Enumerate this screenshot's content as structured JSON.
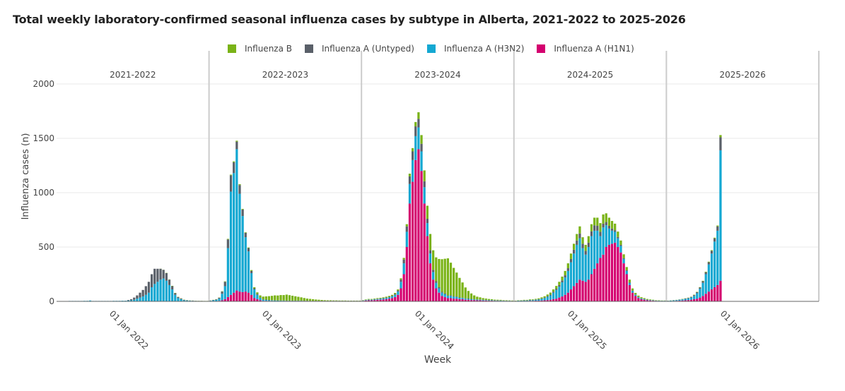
{
  "chart_data": {
    "type": "bar",
    "title": "Total weekly laboratory-confirmed seasonal influenza cases by subtype in Alberta, 2021-2022 to 2025-2026",
    "xlabel": "Week",
    "ylabel": "Influenza cases (n)",
    "ylim": [
      0,
      2100
    ],
    "yticks": [
      0,
      500,
      1000,
      1500,
      2000
    ],
    "stacked": true,
    "legend_position": "top",
    "grid": true,
    "seasons": [
      "2021-2022",
      "2022-2023",
      "2023-2024",
      "2024-2025",
      "2025-2026"
    ],
    "xtick_labels": [
      "01 Jan 2022",
      "01 Jan 2023",
      "01 Jan 2024",
      "01 Jan 2025",
      "01 Jan 2026"
    ],
    "series": [
      {
        "name": "Influenza B",
        "color": "#7ab317"
      },
      {
        "name": "Influenza A (Untyped)",
        "color": "#5a6069"
      },
      {
        "name": "Influenza A (H3N2)",
        "color": "#14a8d2"
      },
      {
        "name": "Influenza A (H1N1)",
        "color": "#d4006f"
      }
    ],
    "weeks_by_season": [
      {
        "season": "2021-2022",
        "h1n1": [
          0,
          0,
          0,
          0,
          0,
          0,
          0,
          0,
          0,
          0,
          0,
          0,
          0,
          0,
          0,
          0,
          0,
          0,
          0,
          0,
          0,
          0,
          0,
          0,
          0,
          0,
          0,
          0,
          0,
          0,
          0,
          0,
          0,
          0,
          0,
          0,
          0,
          0,
          0,
          0,
          0,
          0,
          0,
          0,
          0,
          0,
          0,
          0,
          0,
          0,
          0,
          0
        ],
        "h3n2": [
          2,
          2,
          3,
          3,
          4,
          4,
          4,
          4,
          4,
          5,
          5,
          8,
          4,
          4,
          4,
          4,
          4,
          4,
          4,
          5,
          5,
          5,
          6,
          6,
          8,
          10,
          15,
          25,
          35,
          45,
          60,
          80,
          130,
          160,
          180,
          200,
          210,
          190,
          150,
          110,
          60,
          30,
          20,
          10,
          8,
          6,
          5,
          4,
          3,
          3,
          2,
          2
        ],
        "untyped": [
          0,
          0,
          0,
          0,
          0,
          0,
          0,
          0,
          0,
          0,
          0,
          0,
          0,
          0,
          0,
          0,
          0,
          0,
          0,
          0,
          0,
          0,
          0,
          0,
          5,
          10,
          20,
          30,
          45,
          60,
          80,
          100,
          120,
          140,
          120,
          100,
          80,
          70,
          50,
          30,
          15,
          10,
          6,
          4,
          3,
          2,
          2,
          1,
          1,
          1,
          1,
          1
        ],
        "b": [
          0,
          0,
          0,
          0,
          0,
          0,
          0,
          0,
          0,
          0,
          0,
          0,
          0,
          0,
          0,
          0,
          0,
          0,
          0,
          0,
          0,
          0,
          0,
          0,
          0,
          0,
          0,
          0,
          0,
          0,
          0,
          0,
          0,
          0,
          0,
          1,
          1,
          2,
          2,
          3,
          3,
          2,
          2,
          2,
          1,
          1,
          1,
          1,
          1,
          1,
          1,
          1
        ]
      },
      {
        "season": "2022-2023",
        "h1n1": [
          1,
          2,
          3,
          5,
          10,
          20,
          40,
          60,
          80,
          100,
          90,
          85,
          90,
          80,
          60,
          30,
          20,
          10,
          5,
          5,
          4,
          4,
          3,
          3,
          2,
          2,
          2,
          2,
          2,
          2,
          2,
          2,
          2,
          2,
          1,
          1,
          1,
          1,
          1,
          1,
          1,
          1,
          1,
          1,
          1,
          1,
          1,
          1,
          1,
          1,
          1,
          1
        ],
        "h3n2": [
          5,
          8,
          10,
          20,
          60,
          120,
          450,
          950,
          1100,
          1300,
          900,
          700,
          500,
          380,
          200,
          80,
          40,
          20,
          10,
          8,
          6,
          5,
          5,
          4,
          4,
          4,
          3,
          3,
          3,
          3,
          3,
          3,
          2,
          2,
          2,
          2,
          2,
          2,
          2,
          2,
          2,
          2,
          2,
          2,
          2,
          2,
          2,
          2,
          2,
          2,
          2,
          2
        ],
        "untyped": [
          2,
          3,
          5,
          8,
          20,
          40,
          80,
          150,
          100,
          70,
          80,
          60,
          40,
          30,
          20,
          10,
          8,
          5,
          4,
          3,
          3,
          2,
          2,
          2,
          2,
          2,
          2,
          2,
          2,
          2,
          2,
          2,
          2,
          2,
          2,
          2,
          2,
          2,
          2,
          2,
          2,
          2,
          2,
          2,
          2,
          2,
          2,
          2,
          2,
          2,
          2,
          2
        ],
        "b": [
          1,
          1,
          2,
          2,
          3,
          4,
          5,
          6,
          8,
          8,
          8,
          6,
          5,
          5,
          8,
          10,
          15,
          20,
          25,
          30,
          35,
          40,
          45,
          45,
          50,
          50,
          55,
          50,
          45,
          40,
          35,
          30,
          25,
          20,
          18,
          15,
          12,
          10,
          8,
          6,
          5,
          5,
          4,
          4,
          3,
          3,
          3,
          2,
          2,
          2,
          2,
          2
        ]
      },
      {
        "season": "2023-2024",
        "h1n1": [
          5,
          8,
          10,
          10,
          12,
          15,
          15,
          18,
          20,
          25,
          30,
          40,
          60,
          120,
          250,
          500,
          900,
          1100,
          1300,
          1400,
          1200,
          900,
          600,
          350,
          200,
          120,
          80,
          50,
          40,
          30,
          30,
          25,
          25,
          20,
          20,
          15,
          15,
          12,
          12,
          10,
          10,
          8,
          8,
          6,
          6,
          5,
          5,
          4,
          4,
          3,
          3,
          2
        ],
        "h3n2": [
          3,
          4,
          5,
          5,
          6,
          6,
          8,
          8,
          10,
          12,
          15,
          20,
          30,
          60,
          100,
          140,
          180,
          200,
          220,
          200,
          180,
          150,
          120,
          90,
          70,
          50,
          40,
          30,
          25,
          20,
          20,
          18,
          15,
          12,
          10,
          10,
          8,
          8,
          6,
          6,
          5,
          5,
          4,
          4,
          4,
          3,
          3,
          3,
          2,
          2,
          2,
          2
        ],
        "untyped": [
          1,
          2,
          2,
          2,
          3,
          3,
          4,
          4,
          5,
          5,
          6,
          8,
          10,
          20,
          35,
          50,
          70,
          80,
          90,
          80,
          70,
          55,
          40,
          30,
          20,
          15,
          10,
          8,
          7,
          6,
          6,
          5,
          5,
          4,
          4,
          3,
          3,
          3,
          2,
          2,
          2,
          2,
          2,
          2,
          2,
          2,
          2,
          2,
          1,
          1,
          1,
          1
        ],
        "b": [
          3,
          4,
          5,
          5,
          5,
          6,
          6,
          7,
          8,
          8,
          9,
          10,
          10,
          12,
          15,
          20,
          25,
          30,
          40,
          60,
          80,
          100,
          120,
          150,
          180,
          220,
          260,
          300,
          320,
          340,
          300,
          260,
          220,
          180,
          140,
          100,
          70,
          50,
          35,
          25,
          20,
          15,
          12,
          10,
          8,
          6,
          5,
          5,
          4,
          4,
          3,
          3
        ]
      },
      {
        "season": "2024-2025",
        "h1n1": [
          2,
          3,
          3,
          4,
          4,
          5,
          5,
          6,
          6,
          8,
          10,
          12,
          15,
          20,
          25,
          35,
          45,
          60,
          80,
          110,
          140,
          170,
          200,
          190,
          180,
          200,
          250,
          300,
          350,
          400,
          430,
          500,
          520,
          530,
          540,
          500,
          450,
          350,
          250,
          150,
          80,
          50,
          30,
          20,
          15,
          10,
          8,
          6,
          5,
          4,
          3,
          3
        ],
        "h3n2": [
          2,
          3,
          3,
          4,
          4,
          5,
          6,
          8,
          10,
          15,
          20,
          30,
          40,
          60,
          80,
          100,
          130,
          160,
          200,
          250,
          300,
          350,
          380,
          300,
          250,
          300,
          350,
          350,
          300,
          200,
          250,
          200,
          150,
          120,
          100,
          80,
          60,
          40,
          30,
          20,
          15,
          10,
          8,
          6,
          5,
          4,
          3,
          3,
          2,
          2,
          2,
          2
        ],
        "untyped": [
          1,
          1,
          2,
          2,
          2,
          3,
          3,
          3,
          4,
          4,
          5,
          6,
          8,
          10,
          12,
          15,
          18,
          20,
          25,
          30,
          35,
          40,
          45,
          40,
          35,
          40,
          45,
          50,
          45,
          40,
          35,
          30,
          25,
          20,
          15,
          12,
          10,
          8,
          6,
          5,
          4,
          3,
          3,
          2,
          2,
          2,
          2,
          2,
          1,
          1,
          1,
          1
        ],
        "b": [
          2,
          3,
          3,
          4,
          4,
          5,
          5,
          6,
          8,
          10,
          12,
          15,
          18,
          20,
          25,
          30,
          35,
          40,
          45,
          50,
          55,
          60,
          65,
          60,
          55,
          60,
          65,
          70,
          75,
          80,
          85,
          80,
          75,
          70,
          60,
          50,
          40,
          35,
          30,
          25,
          20,
          15,
          12,
          10,
          8,
          6,
          5,
          4,
          3,
          3,
          2,
          2
        ]
      },
      {
        "season": "2025-2026",
        "h1n1": [
          2,
          3,
          4,
          5,
          6,
          8,
          10,
          12,
          15,
          20,
          25,
          35,
          50,
          70,
          90,
          110,
          130,
          150,
          190
        ],
        "h3n2": [
          3,
          4,
          5,
          6,
          8,
          10,
          12,
          15,
          20,
          30,
          50,
          80,
          120,
          180,
          250,
          330,
          420,
          500,
          1200
        ],
        "untyped": [
          1,
          1,
          2,
          2,
          3,
          3,
          4,
          5,
          6,
          8,
          10,
          12,
          15,
          18,
          20,
          25,
          30,
          40,
          120
        ],
        "b": [
          1,
          1,
          1,
          1,
          1,
          2,
          2,
          2,
          2,
          3,
          3,
          4,
          4,
          5,
          5,
          6,
          6,
          8,
          20
        ]
      }
    ]
  }
}
